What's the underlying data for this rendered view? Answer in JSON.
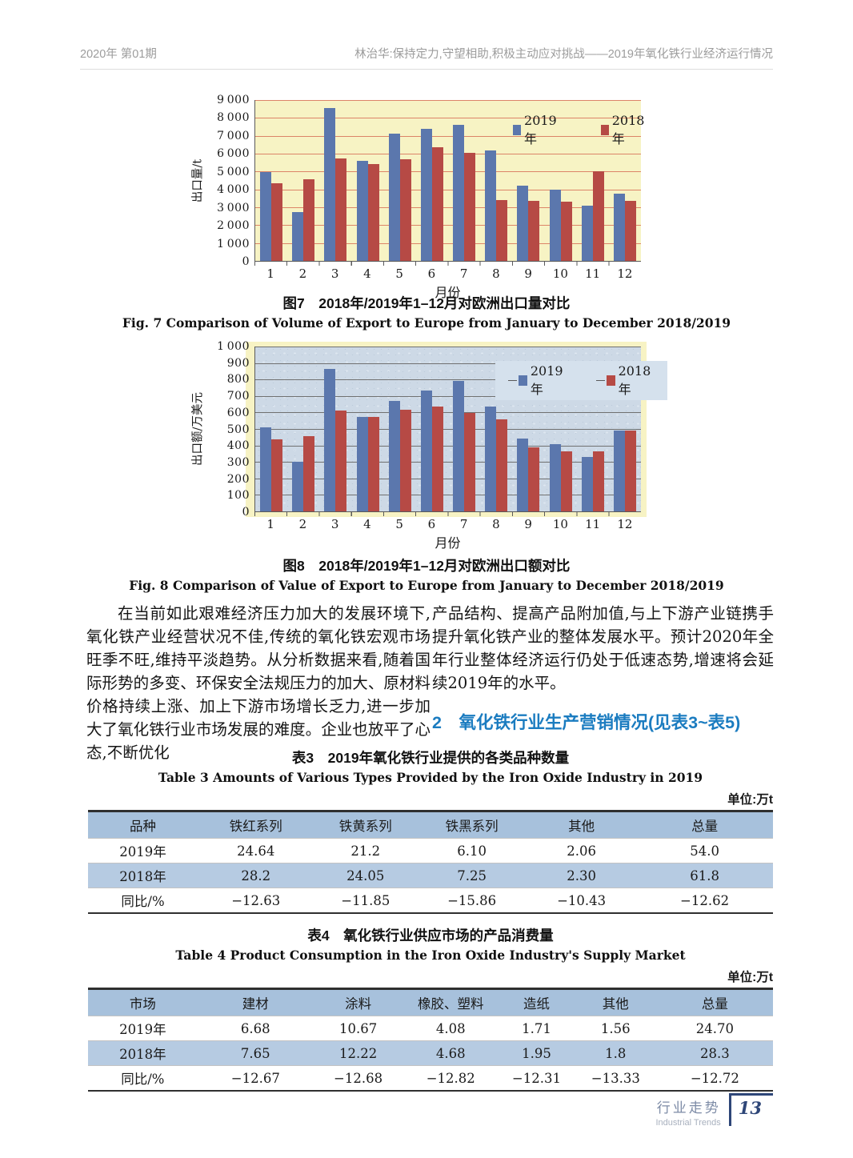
{
  "page": {
    "header": {
      "issue": "2020年 第01期",
      "running_title": "林治华:保持定力,守望相助,积极主动应对挑战——2019年氧化铁行业经济运行情况"
    },
    "footer": {
      "section_cn": "行业走势",
      "section_en": "Industrial Trends",
      "page_number": "13"
    }
  },
  "body": {
    "left_column": "在当前如此艰难经济压力加大的发展环境下,氧化铁产业经营状况不佳,传统的氧化铁宏观市场旺季不旺,维持平淡趋势。从分析数据来看,随着国际形势的多变、环保安全法规压力的加大、原材料价格持续上涨、加上下游市场增长乏力,进一步加大了氧化铁行业市场发展的难度。企业也放平了心态,不断优化",
    "right_column": "产品结构、提高产品附加值,与上下游产业链携手提升氧化铁产业的整体发展水平。预计2020年全年行业整体经济运行仍处于低速态势,增速将会延续2019年的水平。",
    "section_heading": "2　氧化铁行业生产营销情况(见表3~表5)"
  },
  "chart_data": [
    {
      "type": "bar",
      "title": "图7　2018年/2019年1–12月对欧洲出口量对比",
      "title_en": "Fig. 7   Comparison of Volume of Export to Europe from January to December 2018/2019",
      "categories": [
        "1",
        "2",
        "3",
        "4",
        "5",
        "6",
        "7",
        "8",
        "9",
        "10",
        "11",
        "12"
      ],
      "series": [
        {
          "name": "2019年",
          "color": "#5B77AD",
          "values": [
            4950,
            2750,
            8550,
            5600,
            7100,
            7400,
            7600,
            6200,
            4200,
            4000,
            3100,
            3750
          ]
        },
        {
          "name": "2018年",
          "color": "#B64A45",
          "values": [
            4350,
            4550,
            5750,
            5400,
            5700,
            6350,
            6050,
            3400,
            3350,
            3300,
            5000,
            3350
          ]
        }
      ],
      "xlabel": "月份",
      "ylabel": "出口量/t",
      "ylim": [
        0,
        9000
      ],
      "ytick_step": 1000,
      "grid": true,
      "legend_position": "top-center",
      "colors": {
        "plot_bg": "#F7F3C4",
        "grid": "#DC8468"
      }
    },
    {
      "type": "bar",
      "title": "图8　2018年/2019年1–12月对欧洲出口额对比",
      "title_en": "Fig. 8   Comparison of Value of Export to Europe from January to December 2018/2019",
      "categories": [
        "1",
        "2",
        "3",
        "4",
        "5",
        "6",
        "7",
        "8",
        "9",
        "10",
        "11",
        "12"
      ],
      "series": [
        {
          "name": "2019年",
          "color": "#5B77AD",
          "values": [
            510,
            300,
            865,
            575,
            670,
            735,
            790,
            637,
            440,
            408,
            332,
            492
          ]
        },
        {
          "name": "2018年",
          "color": "#B64A45",
          "values": [
            435,
            455,
            612,
            575,
            615,
            638,
            595,
            560,
            390,
            365,
            365,
            488
          ]
        }
      ],
      "xlabel": "月份",
      "ylabel": "出口额/万美元",
      "ylim": [
        0,
        1000
      ],
      "ytick_step": 100,
      "grid": true,
      "legend_position": "top-center",
      "colors": {
        "plot_bg": "#CDD9E6",
        "frame_bg": "#F7F3C4",
        "grid": "#707070",
        "legend_bg": "#D5E1ED"
      }
    }
  ],
  "tables": [
    {
      "caption_cn": "表3　2019年氧化铁行业提供的各类品种数量",
      "caption_en": "Table 3   Amounts of Various Types Provided by the Iron Oxide Industry in 2019",
      "unit": "单位:万t",
      "headers": [
        "品种",
        "铁红系列",
        "铁黄系列",
        "铁黑系列",
        "其他",
        "总量"
      ],
      "rows": [
        [
          "2019年",
          "24.64",
          "21.2",
          "6.10",
          "2.06",
          "54.0"
        ],
        [
          "2018年",
          "28.2",
          "24.05",
          "7.25",
          "2.30",
          "61.8"
        ],
        [
          "同比/%",
          "−12.63",
          "−11.85",
          "−15.86",
          "−10.43",
          "−12.62"
        ]
      ]
    },
    {
      "caption_cn": "表4　氧化铁行业供应市场的产品消费量",
      "caption_en": "Table 4   Product Consumption in the Iron Oxide Industry's Supply Market",
      "unit": "单位:万t",
      "headers": [
        "市场",
        "建材",
        "涂料",
        "橡胶、塑料",
        "造纸",
        "其他",
        "总量"
      ],
      "rows": [
        [
          "2019年",
          "6.68",
          "10.67",
          "4.08",
          "1.71",
          "1.56",
          "24.70"
        ],
        [
          "2018年",
          "7.65",
          "12.22",
          "4.68",
          "1.95",
          "1.8",
          "28.3"
        ],
        [
          "同比/%",
          "−12.67",
          "−12.68",
          "−12.82",
          "−12.31",
          "−13.33",
          "−12.72"
        ]
      ]
    }
  ]
}
